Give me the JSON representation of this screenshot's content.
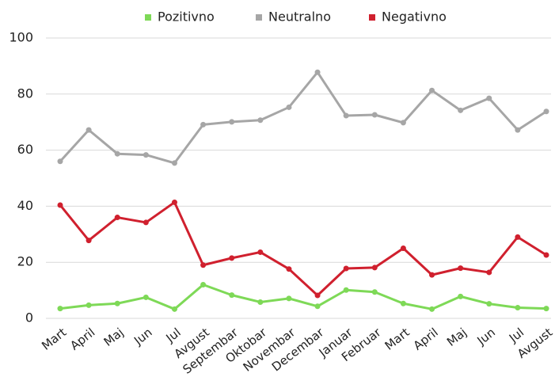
{
  "chart_data": {
    "type": "line",
    "categories": [
      "Mart",
      "April",
      "Maj",
      "Jun",
      "Jul",
      "Avgust",
      "Septembar",
      "Oktobar",
      "Novembar",
      "Decembar",
      "Januar",
      "Februar",
      "Mart",
      "April",
      "Maj",
      "Jun",
      "Jul",
      "Avgust"
    ],
    "series": [
      {
        "name": "Pozitivno",
        "color": "#7ed957",
        "values": [
          3.5,
          4.7,
          5.3,
          7.5,
          3.3,
          12,
          8.3,
          5.8,
          7.1,
          4.3,
          10.1,
          9.4,
          5.3,
          3.3,
          7.8,
          5.2,
          3.8,
          3.5
        ]
      },
      {
        "name": "Neutralno",
        "color": "#a6a6a6",
        "values": [
          56,
          67.2,
          58.7,
          58.3,
          55.4,
          69.1,
          70.1,
          70.7,
          75.3,
          87.8,
          72.3,
          72.6,
          69.8,
          81.3,
          74.2,
          78.5,
          67.2,
          73.8
        ]
      },
      {
        "name": "Negativno",
        "color": "#d0202e",
        "values": [
          40.4,
          27.8,
          36,
          34.2,
          41.4,
          19,
          21.5,
          23.6,
          17.6,
          8.2,
          17.8,
          18.1,
          25,
          15.5,
          17.9,
          16.4,
          29,
          22.6
        ]
      }
    ],
    "ylim": [
      0,
      100
    ],
    "yticks": [
      0,
      20,
      40,
      60,
      80,
      100
    ],
    "grid": true,
    "legend": "top"
  }
}
